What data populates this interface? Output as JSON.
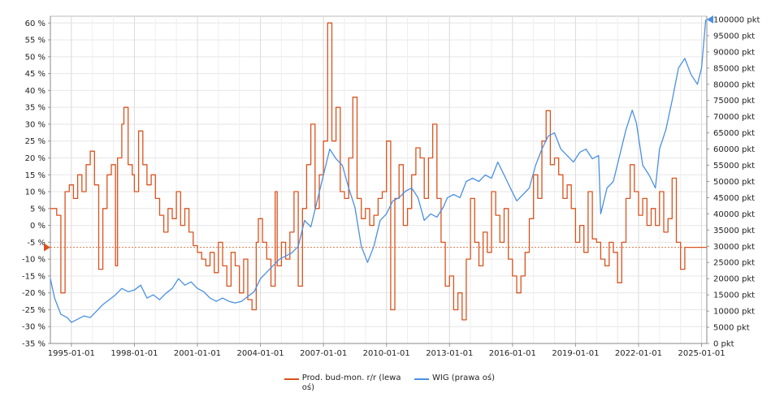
{
  "chart_data": {
    "type": "line",
    "title": "",
    "x_ticks": [
      "1995-01-01",
      "1998-01-01",
      "2001-01-01",
      "2004-01-01",
      "2007-01-01",
      "2010-01-01",
      "2013-01-01",
      "2016-01-01",
      "2019-01-01",
      "2022-01-01",
      "2025-01-01"
    ],
    "x_range": [
      1994.0,
      2025.25
    ],
    "left_axis": {
      "ticks": [
        "60 %",
        "55 %",
        "50 %",
        "45 %",
        "40 %",
        "35 %",
        "30 %",
        "25 %",
        "20 %",
        "15 %",
        "10 %",
        "5 %",
        "0 %",
        "-5 %",
        "-10 %",
        "-15 %",
        "-20 %",
        "-25 %",
        "-30 %",
        "-35 %"
      ],
      "range": [
        -35,
        62
      ]
    },
    "right_axis": {
      "ticks": [
        "100000 pkt",
        "95000 pkt",
        "90000 pkt",
        "85000 pkt",
        "80000 pkt",
        "75000 pkt",
        "70000 pkt",
        "65000 pkt",
        "60000 pkt",
        "55000 pkt",
        "50000 pkt",
        "45000 pkt",
        "40000 pkt",
        "35000 pkt",
        "30000 pkt",
        "25000 pkt",
        "20000 pkt",
        "15000 pkt",
        "10000 pkt",
        "5000 pkt",
        "0 pkt"
      ],
      "range": [
        0,
        101000
      ]
    },
    "grid": true,
    "legend_position": "bottom",
    "series": [
      {
        "name": "Prod. bud-mon. r/r (lewa oś)",
        "axis": "left",
        "color": "#d9531e",
        "current_value": -6.5,
        "points": [
          [
            1994.0,
            5
          ],
          [
            1994.3,
            3
          ],
          [
            1994.5,
            -20
          ],
          [
            1994.7,
            10
          ],
          [
            1994.9,
            12
          ],
          [
            1995.1,
            8
          ],
          [
            1995.3,
            15
          ],
          [
            1995.5,
            10
          ],
          [
            1995.7,
            18
          ],
          [
            1995.9,
            22
          ],
          [
            1996.1,
            12
          ],
          [
            1996.3,
            -13
          ],
          [
            1996.5,
            5
          ],
          [
            1996.7,
            15
          ],
          [
            1996.9,
            18
          ],
          [
            1997.1,
            -12
          ],
          [
            1997.2,
            20
          ],
          [
            1997.4,
            30
          ],
          [
            1997.5,
            35
          ],
          [
            1997.7,
            18
          ],
          [
            1997.9,
            15
          ],
          [
            1998.0,
            10
          ],
          [
            1998.2,
            28
          ],
          [
            1998.4,
            18
          ],
          [
            1998.6,
            12
          ],
          [
            1998.8,
            15
          ],
          [
            1999.0,
            8
          ],
          [
            1999.2,
            3
          ],
          [
            1999.4,
            -2
          ],
          [
            1999.6,
            5
          ],
          [
            1999.8,
            2
          ],
          [
            2000.0,
            10
          ],
          [
            2000.2,
            0
          ],
          [
            2000.4,
            5
          ],
          [
            2000.6,
            -2
          ],
          [
            2000.8,
            -6
          ],
          [
            2001.0,
            -8
          ],
          [
            2001.2,
            -10
          ],
          [
            2001.4,
            -12
          ],
          [
            2001.6,
            -8
          ],
          [
            2001.8,
            -14
          ],
          [
            2002.0,
            -5
          ],
          [
            2002.2,
            -12
          ],
          [
            2002.4,
            -18
          ],
          [
            2002.6,
            -8
          ],
          [
            2002.8,
            -12
          ],
          [
            2003.0,
            -20
          ],
          [
            2003.2,
            -10
          ],
          [
            2003.4,
            -22
          ],
          [
            2003.6,
            -25
          ],
          [
            2003.8,
            -5
          ],
          [
            2003.9,
            2
          ],
          [
            2004.1,
            -5
          ],
          [
            2004.3,
            -10
          ],
          [
            2004.5,
            -18
          ],
          [
            2004.7,
            10
          ],
          [
            2004.8,
            -12
          ],
          [
            2005.0,
            -5
          ],
          [
            2005.2,
            -10
          ],
          [
            2005.4,
            -2
          ],
          [
            2005.6,
            10
          ],
          [
            2005.8,
            -18
          ],
          [
            2006.0,
            5
          ],
          [
            2006.2,
            18
          ],
          [
            2006.4,
            30
          ],
          [
            2006.6,
            5
          ],
          [
            2006.8,
            15
          ],
          [
            2007.0,
            25
          ],
          [
            2007.2,
            60
          ],
          [
            2007.4,
            25
          ],
          [
            2007.6,
            35
          ],
          [
            2007.8,
            10
          ],
          [
            2008.0,
            8
          ],
          [
            2008.2,
            20
          ],
          [
            2008.4,
            38
          ],
          [
            2008.6,
            8
          ],
          [
            2008.8,
            2
          ],
          [
            2009.0,
            5
          ],
          [
            2009.2,
            0
          ],
          [
            2009.4,
            3
          ],
          [
            2009.6,
            8
          ],
          [
            2009.8,
            10
          ],
          [
            2010.0,
            25
          ],
          [
            2010.2,
            -25
          ],
          [
            2010.4,
            8
          ],
          [
            2010.6,
            18
          ],
          [
            2010.8,
            0
          ],
          [
            2011.0,
            5
          ],
          [
            2011.2,
            15
          ],
          [
            2011.4,
            23
          ],
          [
            2011.6,
            20
          ],
          [
            2011.8,
            8
          ],
          [
            2012.0,
            20
          ],
          [
            2012.2,
            30
          ],
          [
            2012.4,
            8
          ],
          [
            2012.6,
            -5
          ],
          [
            2012.8,
            -18
          ],
          [
            2013.0,
            -15
          ],
          [
            2013.2,
            -25
          ],
          [
            2013.4,
            -20
          ],
          [
            2013.6,
            -28
          ],
          [
            2013.8,
            -10
          ],
          [
            2014.0,
            8
          ],
          [
            2014.2,
            -5
          ],
          [
            2014.4,
            -12
          ],
          [
            2014.6,
            -2
          ],
          [
            2014.8,
            -8
          ],
          [
            2015.0,
            10
          ],
          [
            2015.2,
            3
          ],
          [
            2015.4,
            -5
          ],
          [
            2015.6,
            5
          ],
          [
            2015.8,
            -10
          ],
          [
            2016.0,
            -15
          ],
          [
            2016.2,
            -20
          ],
          [
            2016.4,
            -15
          ],
          [
            2016.6,
            -8
          ],
          [
            2016.8,
            2
          ],
          [
            2017.0,
            15
          ],
          [
            2017.2,
            8
          ],
          [
            2017.4,
            25
          ],
          [
            2017.6,
            34
          ],
          [
            2017.8,
            18
          ],
          [
            2018.0,
            20
          ],
          [
            2018.2,
            15
          ],
          [
            2018.4,
            8
          ],
          [
            2018.6,
            12
          ],
          [
            2018.8,
            5
          ],
          [
            2019.0,
            -5
          ],
          [
            2019.2,
            0
          ],
          [
            2019.4,
            -8
          ],
          [
            2019.6,
            10
          ],
          [
            2019.8,
            -4
          ],
          [
            2020.0,
            -5
          ],
          [
            2020.2,
            -10
          ],
          [
            2020.4,
            -12
          ],
          [
            2020.6,
            -5
          ],
          [
            2020.8,
            -8
          ],
          [
            2021.0,
            -17
          ],
          [
            2021.2,
            -5
          ],
          [
            2021.4,
            8
          ],
          [
            2021.6,
            18
          ],
          [
            2021.8,
            10
          ],
          [
            2022.0,
            3
          ],
          [
            2022.2,
            8
          ],
          [
            2022.4,
            0
          ],
          [
            2022.6,
            5
          ],
          [
            2022.8,
            0
          ],
          [
            2023.0,
            10
          ],
          [
            2023.2,
            -2
          ],
          [
            2023.4,
            2
          ],
          [
            2023.6,
            14
          ],
          [
            2023.8,
            -5
          ],
          [
            2024.0,
            -13
          ],
          [
            2024.2,
            -6.5
          ],
          [
            2025.25,
            -6.5
          ]
        ]
      },
      {
        "name": "WIG (prawa oś)",
        "axis": "right",
        "color": "#4a90e2",
        "current_value": 100000,
        "points": [
          [
            1994.0,
            20000
          ],
          [
            1994.2,
            14000
          ],
          [
            1994.5,
            9000
          ],
          [
            1994.8,
            8000
          ],
          [
            1995.0,
            6500
          ],
          [
            1995.3,
            7500
          ],
          [
            1995.6,
            8500
          ],
          [
            1995.9,
            8000
          ],
          [
            1996.2,
            10000
          ],
          [
            1996.5,
            12000
          ],
          [
            1996.8,
            13500
          ],
          [
            1997.1,
            15000
          ],
          [
            1997.4,
            17000
          ],
          [
            1997.7,
            16000
          ],
          [
            1998.0,
            16500
          ],
          [
            1998.3,
            18000
          ],
          [
            1998.6,
            14000
          ],
          [
            1998.9,
            15000
          ],
          [
            1999.2,
            13500
          ],
          [
            1999.5,
            15500
          ],
          [
            1999.8,
            17000
          ],
          [
            2000.1,
            20000
          ],
          [
            2000.4,
            18000
          ],
          [
            2000.7,
            19000
          ],
          [
            2001.0,
            17000
          ],
          [
            2001.3,
            16000
          ],
          [
            2001.6,
            14000
          ],
          [
            2001.9,
            13000
          ],
          [
            2002.2,
            14000
          ],
          [
            2002.5,
            13000
          ],
          [
            2002.8,
            12500
          ],
          [
            2003.1,
            13000
          ],
          [
            2003.4,
            14500
          ],
          [
            2003.7,
            16000
          ],
          [
            2004.0,
            20000
          ],
          [
            2004.3,
            22000
          ],
          [
            2004.6,
            24000
          ],
          [
            2004.9,
            26000
          ],
          [
            2005.2,
            27000
          ],
          [
            2005.5,
            28000
          ],
          [
            2005.8,
            30000
          ],
          [
            2006.1,
            38000
          ],
          [
            2006.4,
            36000
          ],
          [
            2006.7,
            44000
          ],
          [
            2007.0,
            52000
          ],
          [
            2007.3,
            60000
          ],
          [
            2007.6,
            57000
          ],
          [
            2007.9,
            55000
          ],
          [
            2008.2,
            48000
          ],
          [
            2008.5,
            42000
          ],
          [
            2008.8,
            30000
          ],
          [
            2009.1,
            25000
          ],
          [
            2009.4,
            30000
          ],
          [
            2009.7,
            38000
          ],
          [
            2010.0,
            40000
          ],
          [
            2010.3,
            44000
          ],
          [
            2010.6,
            45000
          ],
          [
            2010.9,
            47000
          ],
          [
            2011.2,
            48000
          ],
          [
            2011.5,
            45000
          ],
          [
            2011.8,
            38000
          ],
          [
            2012.1,
            40000
          ],
          [
            2012.4,
            39000
          ],
          [
            2012.7,
            42000
          ],
          [
            2012.9,
            45000
          ],
          [
            2013.2,
            46000
          ],
          [
            2013.5,
            45000
          ],
          [
            2013.8,
            50000
          ],
          [
            2014.1,
            51000
          ],
          [
            2014.4,
            50000
          ],
          [
            2014.7,
            52000
          ],
          [
            2015.0,
            51000
          ],
          [
            2015.3,
            56000
          ],
          [
            2015.6,
            52000
          ],
          [
            2015.9,
            48000
          ],
          [
            2016.2,
            44000
          ],
          [
            2016.5,
            46000
          ],
          [
            2016.8,
            48000
          ],
          [
            2017.1,
            55000
          ],
          [
            2017.4,
            60000
          ],
          [
            2017.7,
            64000
          ],
          [
            2018.0,
            65000
          ],
          [
            2018.3,
            60000
          ],
          [
            2018.6,
            58000
          ],
          [
            2018.9,
            56000
          ],
          [
            2019.2,
            59000
          ],
          [
            2019.5,
            60000
          ],
          [
            2019.8,
            57000
          ],
          [
            2020.1,
            58000
          ],
          [
            2020.2,
            40000
          ],
          [
            2020.5,
            48000
          ],
          [
            2020.8,
            50000
          ],
          [
            2021.1,
            58000
          ],
          [
            2021.4,
            66000
          ],
          [
            2021.7,
            72000
          ],
          [
            2021.9,
            68000
          ],
          [
            2022.2,
            55000
          ],
          [
            2022.5,
            52000
          ],
          [
            2022.8,
            48000
          ],
          [
            2023.0,
            60000
          ],
          [
            2023.3,
            66000
          ],
          [
            2023.6,
            75000
          ],
          [
            2023.9,
            85000
          ],
          [
            2024.2,
            88000
          ],
          [
            2024.5,
            83000
          ],
          [
            2024.8,
            80000
          ],
          [
            2025.0,
            85000
          ],
          [
            2025.2,
            100000
          ]
        ]
      }
    ]
  }
}
